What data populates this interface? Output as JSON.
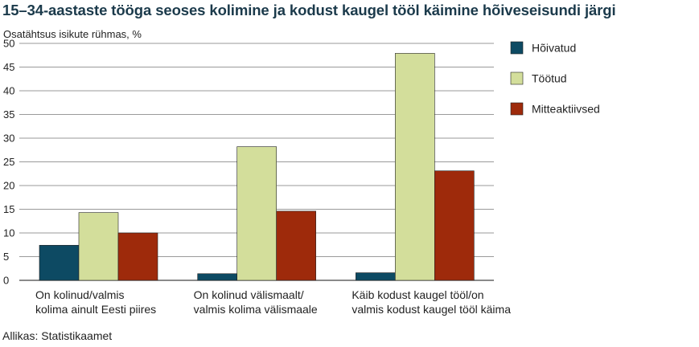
{
  "chart_data": {
    "type": "bar",
    "title": "15–34-aastaste tööga seoses kolimine ja kodust kaugel tööl käimine hõiveseisundi järgi",
    "ylabel": "Osatähtsus isikute rühmas, %",
    "ylim": [
      0,
      50
    ],
    "yticks": [
      0,
      5,
      10,
      15,
      20,
      25,
      30,
      35,
      40,
      45,
      50
    ],
    "grid": true,
    "legend_position": "right",
    "categories": [
      [
        "On kolinud/valmis",
        "kolima ainult Eesti piires"
      ],
      [
        "On kolinud välismaalt/",
        "valmis kolima välismaale"
      ],
      [
        "Käib kodust kaugel tööl/on",
        "valmis kodust kaugel tööl käima"
      ]
    ],
    "series": [
      {
        "name": "Hõivatud",
        "color": "#0d4a63",
        "values": [
          7.4,
          1.4,
          1.6
        ]
      },
      {
        "name": "Töötud",
        "color": "#d3de9b",
        "values": [
          14.3,
          28.2,
          47.9
        ]
      },
      {
        "name": "Mitteaktiivsed",
        "color": "#9e2a0b",
        "values": [
          10.0,
          14.6,
          23.1
        ]
      }
    ]
  },
  "source": "Allikas: Statistikaamet"
}
